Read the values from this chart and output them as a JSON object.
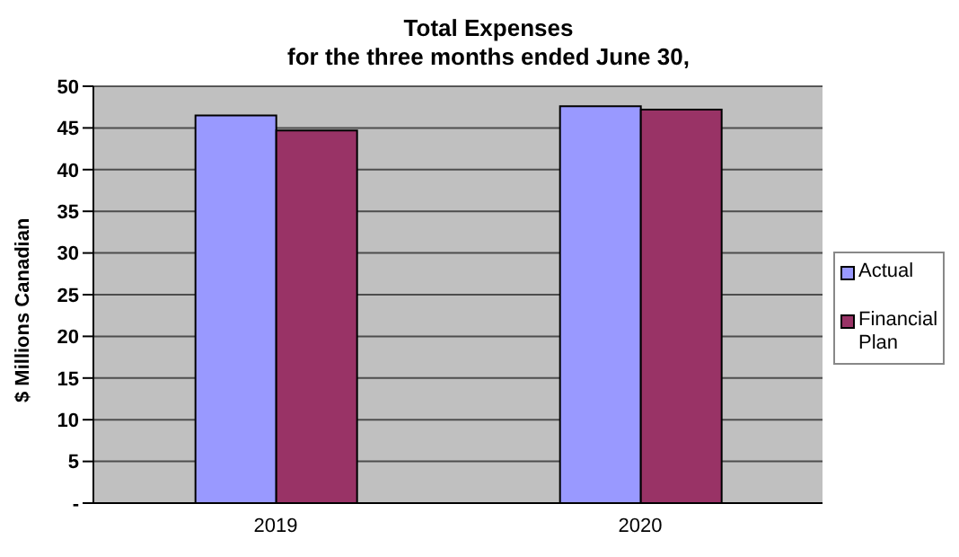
{
  "chart_data": {
    "type": "bar",
    "title": "Total Expenses",
    "subtitle": "for the three months ended June 30,",
    "ylabel": "$ Millions Canadian",
    "categories": [
      "2019",
      "2020"
    ],
    "series": [
      {
        "name": "Actual",
        "color": "#9999ff",
        "values": [
          46.5,
          47.6
        ]
      },
      {
        "name": "Financial Plan",
        "color": "#993366",
        "values": [
          44.7,
          47.2
        ]
      }
    ],
    "ylim": [
      0,
      50
    ],
    "yticks": [
      {
        "value": 0,
        "label": "-"
      },
      5,
      10,
      15,
      20,
      25,
      30,
      35,
      40,
      45,
      50
    ],
    "grid": "y",
    "legend": "right"
  }
}
